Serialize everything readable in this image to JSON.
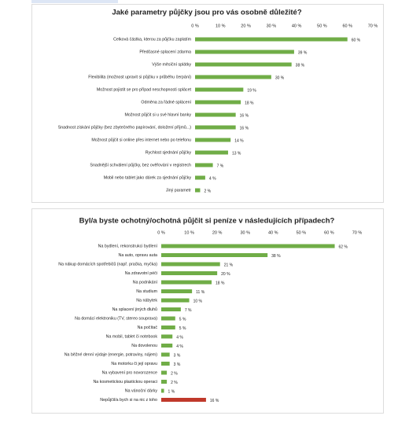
{
  "chart_data": [
    {
      "type": "bar",
      "orientation": "horizontal",
      "title": "Jaké parametry půjčky jsou pro vás osobně důležité?",
      "categories": [
        "Celková částka, kterou za půjčku zaplatím",
        "Předčasné splacení zdarma",
        "Výše měsíční splátky",
        "Flexibilita (možnost upravit si půjčku v průběhu čerpání)",
        "Možnost pojistit se pro případ neschopnosti splácet",
        "Odměna za řádné splácení",
        "Možnost půjčit si u své hlavní banky",
        "Snadnost získání půjčky (bez zbytečného papírování, doložení příjmů...)",
        "Možnost půjčit si online přes internet nebo po telefonu",
        "Rychlost sjednání půjčky",
        "Snadnější schválení půjčky, bez ověřování v registrech",
        "Mobil nebo tablet jako dárek za sjednání půjčky",
        "Jiný parametr"
      ],
      "values": [
        60,
        39,
        38,
        30,
        19,
        18,
        16,
        16,
        14,
        13,
        7,
        4,
        2
      ],
      "value_labels": [
        "60 %",
        "39 %",
        "38 %",
        "30 %",
        "19 %",
        "18 %",
        "16 %",
        "16 %",
        "14 %",
        "13 %",
        "7 %",
        "4 %",
        "2 %"
      ],
      "colors": [
        "#70ad47",
        "#70ad47",
        "#70ad47",
        "#70ad47",
        "#70ad47",
        "#70ad47",
        "#70ad47",
        "#70ad47",
        "#70ad47",
        "#70ad47",
        "#70ad47",
        "#70ad47",
        "#70ad47"
      ],
      "xlim": [
        0,
        70
      ],
      "xticks": [
        {
          "value": 0,
          "label": "0 %"
        },
        {
          "value": 10,
          "label": "10 %"
        },
        {
          "value": 20,
          "label": "20 %"
        },
        {
          "value": 30,
          "label": "30 %"
        },
        {
          "value": 40,
          "label": "40 %"
        },
        {
          "value": 50,
          "label": "50 %"
        },
        {
          "value": 60,
          "label": "60 %"
        },
        {
          "value": 70,
          "label": "70 %"
        }
      ]
    },
    {
      "type": "bar",
      "orientation": "horizontal",
      "title": "Byl/a byste ochotný/ochotná půjčit si peníze v následujících případech?",
      "categories": [
        "Na bydlení, rekonstrukci bydlení",
        "Na auto, opravu auta",
        "Na nákup domácích spotřebičů (např. pračka, myčka)",
        "Na zdravotní péči",
        "Na podnikání",
        "Na studium",
        "Na nábytek",
        "Na splacení jiných dluhů",
        "Na domácí elektroniku (TV, stereo souprava)",
        "Na počítač",
        "Na mobil, tablet či notebook",
        "Na dovolenou",
        "Na běžné denní výdaje (energie, potraviny, nájem)",
        "Na motorku či její opravu",
        "Na vybavení pro novorozence",
        "Na kosmetickou plastickou operaci",
        "Na vánoční dárky",
        "Nepůjčil/a bych si na nic z toho"
      ],
      "values": [
        62,
        38,
        21,
        20,
        18,
        11,
        10,
        7,
        5,
        5,
        4,
        4,
        3,
        3,
        2,
        2,
        1,
        16
      ],
      "value_labels": [
        "62 %",
        "38 %",
        "21 %",
        "20 %",
        "18 %",
        "11 %",
        "10 %",
        "7 %",
        "5 %",
        "5 %",
        "4 %",
        "4 %",
        "3 %",
        "3 %",
        "2 %",
        "2 %",
        "1 %",
        "16 %"
      ],
      "colors": [
        "#70ad47",
        "#70ad47",
        "#70ad47",
        "#70ad47",
        "#70ad47",
        "#70ad47",
        "#70ad47",
        "#70ad47",
        "#70ad47",
        "#70ad47",
        "#70ad47",
        "#70ad47",
        "#70ad47",
        "#70ad47",
        "#70ad47",
        "#70ad47",
        "#70ad47",
        "#c0392b"
      ],
      "xlim": [
        0,
        70
      ],
      "xticks": [
        {
          "value": 0,
          "label": "0 %"
        },
        {
          "value": 10,
          "label": "10 %"
        },
        {
          "value": 20,
          "label": "20 %"
        },
        {
          "value": 30,
          "label": "30 %"
        },
        {
          "value": 40,
          "label": "40 %"
        },
        {
          "value": 50,
          "label": "50 %"
        },
        {
          "value": 60,
          "label": "60 %"
        },
        {
          "value": 70,
          "label": "70 %"
        }
      ]
    }
  ]
}
